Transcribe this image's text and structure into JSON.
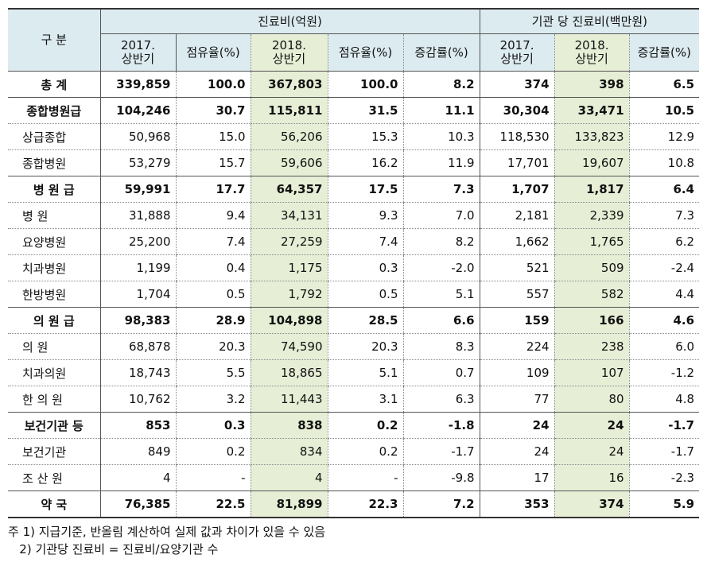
{
  "header": {
    "division": "구  분",
    "group_cost": "진료비(억원)",
    "group_per_inst": "기관 당 진료비(백만원)",
    "cols": [
      [
        "2017.",
        "상반기"
      ],
      [
        "점유율(%)"
      ],
      [
        "2018.",
        "상반기"
      ],
      [
        "점유율(%)"
      ],
      [
        "증감률(%)"
      ],
      [
        "2017.",
        "상반기"
      ],
      [
        "2018.",
        "상반기"
      ],
      [
        "증감률(%)"
      ]
    ]
  },
  "rows": [
    {
      "label": "총    계",
      "bold": true,
      "v": [
        "339,859",
        "100.0",
        "367,803",
        "100.0",
        "8.2",
        "374",
        "398",
        "6.5"
      ]
    },
    {
      "label": "종합병원급",
      "bold": true,
      "v": [
        "104,246",
        "30.7",
        "115,811",
        "31.5",
        "11.1",
        "30,304",
        "33,471",
        "10.5"
      ]
    },
    {
      "label": "상급종합",
      "bold": false,
      "v": [
        "50,968",
        "15.0",
        "56,206",
        "15.3",
        "10.3",
        "118,530",
        "133,823",
        "12.9"
      ]
    },
    {
      "label": "종합병원",
      "bold": false,
      "v": [
        "53,279",
        "15.7",
        "59,606",
        "16.2",
        "11.9",
        "17,701",
        "19,607",
        "10.8"
      ]
    },
    {
      "label": "병 원 급",
      "bold": true,
      "v": [
        "59,991",
        "17.7",
        "64,357",
        "17.5",
        "7.3",
        "1,707",
        "1,817",
        "6.4"
      ]
    },
    {
      "label": "병    원",
      "bold": false,
      "v": [
        "31,888",
        "9.4",
        "34,131",
        "9.3",
        "7.0",
        "2,181",
        "2,339",
        "7.3"
      ]
    },
    {
      "label": "요양병원",
      "bold": false,
      "v": [
        "25,200",
        "7.4",
        "27,259",
        "7.4",
        "8.2",
        "1,662",
        "1,765",
        "6.2"
      ]
    },
    {
      "label": "치과병원",
      "bold": false,
      "v": [
        "1,199",
        "0.4",
        "1,175",
        "0.3",
        "-2.0",
        "521",
        "509",
        "-2.4"
      ]
    },
    {
      "label": "한방병원",
      "bold": false,
      "v": [
        "1,704",
        "0.5",
        "1,792",
        "0.5",
        "5.1",
        "557",
        "582",
        "4.4"
      ]
    },
    {
      "label": "의 원 급",
      "bold": true,
      "v": [
        "98,383",
        "28.9",
        "104,898",
        "28.5",
        "6.6",
        "159",
        "166",
        "4.6"
      ]
    },
    {
      "label": "의    원",
      "bold": false,
      "v": [
        "68,878",
        "20.3",
        "74,590",
        "20.3",
        "8.3",
        "224",
        "238",
        "6.0"
      ]
    },
    {
      "label": "치과의원",
      "bold": false,
      "v": [
        "18,743",
        "5.5",
        "18,865",
        "5.1",
        "0.7",
        "109",
        "107",
        "-1.2"
      ]
    },
    {
      "label": "한 의 원",
      "bold": false,
      "v": [
        "10,762",
        "3.2",
        "11,443",
        "3.1",
        "6.3",
        "77",
        "80",
        "4.8"
      ]
    },
    {
      "label": "보건기관 등",
      "bold": true,
      "v": [
        "853",
        "0.3",
        "838",
        "0.2",
        "-1.8",
        "24",
        "24",
        "-1.7"
      ]
    },
    {
      "label": "보건기관",
      "bold": false,
      "v": [
        "849",
        "0.2",
        "834",
        "0.2",
        "-1.7",
        "24",
        "24",
        "-1.7"
      ]
    },
    {
      "label": "조 산 원",
      "bold": false,
      "v": [
        "4",
        "-",
        "4",
        "-",
        "-9.8",
        "17",
        "16",
        "-2.3"
      ]
    },
    {
      "label": "약    국",
      "bold": true,
      "v": [
        "76,385",
        "22.5",
        "81,899",
        "22.3",
        "7.2",
        "353",
        "374",
        "5.9"
      ]
    }
  ],
  "notes": [
    "주 1) 지급기준, 반올림 계산하여 실제 값과 차이가 있을 수 있음",
    "   2) 기관당 진료비 = 진료비/요양기관 수"
  ]
}
